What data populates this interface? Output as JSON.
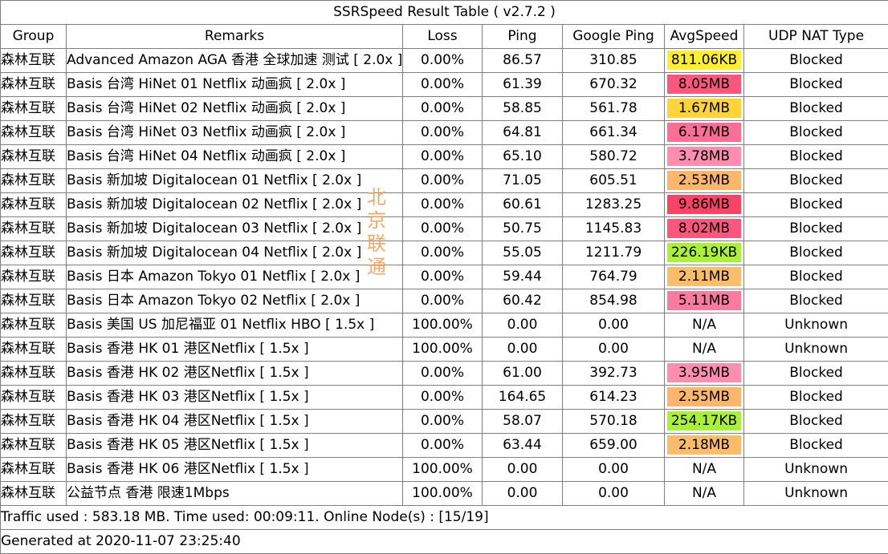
{
  "title": "SSRSpeed Result Table ( v2.7.2 )",
  "headers": [
    "Group",
    "Remarks",
    "Loss",
    "Ping",
    "Google Ping",
    "AvgSpeed",
    "UDP NAT Type"
  ],
  "rows": [
    {
      "group": "森林互联",
      "remarks": "Advanced Amazon AGA 香港 全球加速 测试 [ 2.0x ]",
      "loss": "0.00%",
      "ping": "86.57",
      "gping": "310.85",
      "speed": "811.06KB",
      "speed_color": "#ffee33",
      "udp": "Blocked"
    },
    {
      "group": "森林互联",
      "remarks": "Basis 台湾 HiNet 01 Netflix 动画疯 [ 2.0x ]",
      "loss": "0.00%",
      "ping": "61.39",
      "gping": "670.32",
      "speed": "8.05MB",
      "speed_color": "#f9577d",
      "udp": "Blocked"
    },
    {
      "group": "森林互联",
      "remarks": "Basis 台湾 HiNet 02 Netflix 动画疯 [ 2.0x ]",
      "loss": "0.00%",
      "ping": "58.85",
      "gping": "561.78",
      "speed": "1.67MB",
      "speed_color": "#ffd43b",
      "udp": "Blocked"
    },
    {
      "group": "森林互联",
      "remarks": "Basis 台湾 HiNet 03 Netflix 动画疯 [ 2.0x ]",
      "loss": "0.00%",
      "ping": "64.81",
      "gping": "661.34",
      "speed": "6.17MB",
      "speed_color": "#fb6f96",
      "udp": "Blocked"
    },
    {
      "group": "森林互联",
      "remarks": "Basis 台湾 HiNet 04 Netflix 动画疯 [ 2.0x ]",
      "loss": "0.00%",
      "ping": "65.10",
      "gping": "580.72",
      "speed": "3.78MB",
      "speed_color": "#fd8eb1",
      "udp": "Blocked"
    },
    {
      "group": "森林互联",
      "remarks": "Basis 新加坡 Digitalocean 01 Netflix [ 2.0x ]",
      "loss": "0.00%",
      "ping": "71.05",
      "gping": "605.51",
      "speed": "2.53MB",
      "speed_color": "#fcb76c",
      "udp": "Blocked"
    },
    {
      "group": "森林互联",
      "remarks": "Basis 新加坡 Digitalocean 02 Netflix [ 2.0x ]",
      "loss": "0.00%",
      "ping": "60.61",
      "gping": "1283.25",
      "speed": "9.86MB",
      "speed_color": "#f84466",
      "udp": "Blocked"
    },
    {
      "group": "森林互联",
      "remarks": "Basis 新加坡 Digitalocean 03 Netflix [ 2.0x ]",
      "loss": "0.00%",
      "ping": "50.75",
      "gping": "1145.83",
      "speed": "8.02MB",
      "speed_color": "#f9577d",
      "udp": "Blocked"
    },
    {
      "group": "森林互联",
      "remarks": "Basis 新加坡 Digitalocean 04 Netflix [ 2.0x ]",
      "loss": "0.00%",
      "ping": "55.05",
      "gping": "1211.79",
      "speed": "226.19KB",
      "speed_color": "#aaf03a",
      "udp": "Blocked"
    },
    {
      "group": "森林互联",
      "remarks": "Basis 日本 Amazon Tokyo 01 Netflix [ 2.0x ]",
      "loss": "0.00%",
      "ping": "59.44",
      "gping": "764.79",
      "speed": "2.11MB",
      "speed_color": "#fcbd6b",
      "udp": "Blocked"
    },
    {
      "group": "森林互联",
      "remarks": "Basis 日本 Amazon Tokyo 02 Netflix [ 2.0x ]",
      "loss": "0.00%",
      "ping": "60.42",
      "gping": "854.98",
      "speed": "5.11MB",
      "speed_color": "#fb7aa0",
      "udp": "Blocked"
    },
    {
      "group": "森林互联",
      "remarks": "Basis 美国 US 加尼福亚 01 Netflix HBO [ 1.5x ]",
      "loss": "100.00%",
      "ping": "0.00",
      "gping": "0.00",
      "speed": "N/A",
      "speed_color": "",
      "udp": "Unknown"
    },
    {
      "group": "森林互联",
      "remarks": "Basis 香港 HK 01 港区Netflix [ 1.5x ]",
      "loss": "100.00%",
      "ping": "0.00",
      "gping": "0.00",
      "speed": "N/A",
      "speed_color": "",
      "udp": "Unknown"
    },
    {
      "group": "森林互联",
      "remarks": "Basis 香港 HK 02 港区Netflix [ 1.5x ]",
      "loss": "0.00%",
      "ping": "61.00",
      "gping": "392.73",
      "speed": "3.95MB",
      "speed_color": "#fd8eb1",
      "udp": "Blocked"
    },
    {
      "group": "森林互联",
      "remarks": "Basis 香港 HK 03 港区Netflix [ 1.5x ]",
      "loss": "0.00%",
      "ping": "164.65",
      "gping": "614.23",
      "speed": "2.55MB",
      "speed_color": "#fcb76c",
      "udp": "Blocked"
    },
    {
      "group": "森林互联",
      "remarks": "Basis 香港 HK 04 港区Netflix [ 1.5x ]",
      "loss": "0.00%",
      "ping": "58.07",
      "gping": "570.18",
      "speed": "254.17KB",
      "speed_color": "#aaf03a",
      "udp": "Blocked"
    },
    {
      "group": "森林互联",
      "remarks": "Basis 香港 HK 05 港区Netflix [ 1.5x ]",
      "loss": "0.00%",
      "ping": "63.44",
      "gping": "659.00",
      "speed": "2.18MB",
      "speed_color": "#fcbd6b",
      "udp": "Blocked"
    },
    {
      "group": "森林互联",
      "remarks": "Basis 香港 HK 06 港区Netflix [ 1.5x ]",
      "loss": "100.00%",
      "ping": "0.00",
      "gping": "0.00",
      "speed": "N/A",
      "speed_color": "",
      "udp": "Unknown"
    },
    {
      "group": "森林互联",
      "remarks": "公益节点 香港 限速1Mbps",
      "loss": "100.00%",
      "ping": "0.00",
      "gping": "0.00",
      "speed": "N/A",
      "speed_color": "",
      "udp": "Unknown"
    }
  ],
  "footer": {
    "traffic": "Traffic used : 583.18 MB. Time used: 00:09:11. Online Node(s) : [15/19]",
    "generated": "Generated at 2020-11-07 23:25:40"
  },
  "watermark": [
    "北",
    "京",
    "联",
    "通"
  ]
}
